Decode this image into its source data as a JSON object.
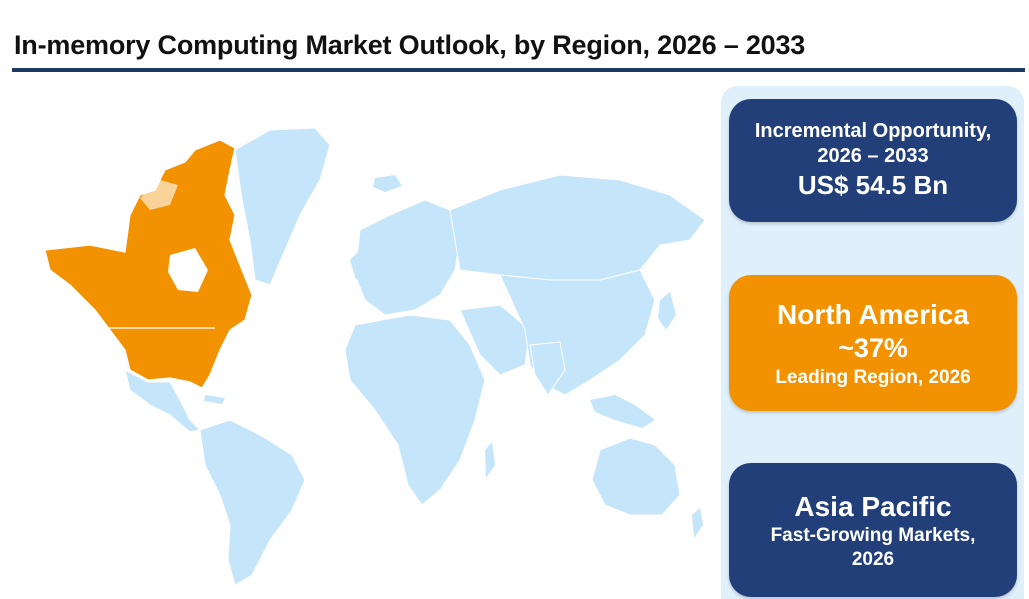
{
  "header": {
    "title": "In-memory Computing Market Outlook, by Region, 2026 – 2033"
  },
  "map": {
    "highlighted_region": "North America",
    "colors": {
      "highlight": "#f39200",
      "land": "#c5e6fa",
      "panel_bg": "#dff0fb",
      "card_blue": "#223f7a",
      "card_orange": "#f39200"
    }
  },
  "cards": {
    "opportunity": {
      "line1": "Incremental Opportunity,",
      "line2": "2026 – 2033",
      "value": "US$ 54.5 Bn"
    },
    "leading": {
      "region": "North America",
      "share": "~37%",
      "caption": "Leading Region, 2026"
    },
    "growth": {
      "region": "Asia Pacific",
      "line1": "Fast-Growing Markets,",
      "line2": "2026"
    }
  }
}
